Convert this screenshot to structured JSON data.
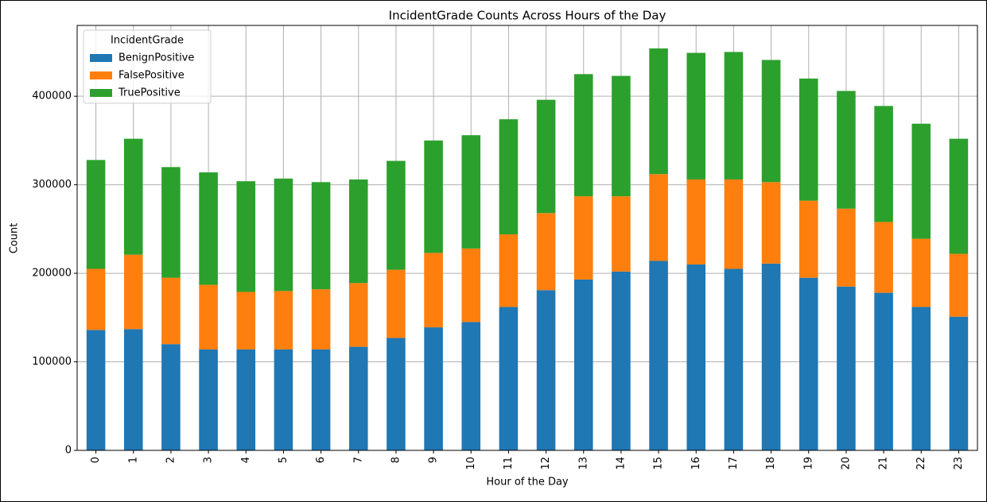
{
  "chart_data": {
    "type": "stacked_bar",
    "title": "IncidentGrade Counts Across Hours of the Day",
    "x_label": "Hour of the Day",
    "y_label": "Count",
    "categories": [
      "0",
      "1",
      "2",
      "3",
      "4",
      "5",
      "6",
      "7",
      "8",
      "9",
      "10",
      "11",
      "12",
      "13",
      "14",
      "15",
      "16",
      "17",
      "18",
      "19",
      "20",
      "21",
      "22",
      "23"
    ],
    "series": [
      {
        "name": "BenignPositive",
        "color": "#1f77b4",
        "values": [
          136000,
          137000,
          120000,
          114000,
          114000,
          114000,
          114000,
          117000,
          127000,
          139000,
          145000,
          162000,
          181000,
          193000,
          202000,
          214000,
          210000,
          205000,
          211000,
          195000,
          185000,
          178000,
          162000,
          151000
        ]
      },
      {
        "name": "FalsePositive",
        "color": "#ff7f0e",
        "values": [
          69000,
          84000,
          75000,
          73000,
          65000,
          66000,
          68000,
          72000,
          77000,
          84000,
          83000,
          82000,
          87000,
          94000,
          85000,
          98000,
          96000,
          101000,
          92000,
          87000,
          88000,
          80000,
          77000,
          71000
        ]
      },
      {
        "name": "TruePositive",
        "color": "#2ca02c",
        "values": [
          123000,
          131000,
          125000,
          127000,
          125000,
          127000,
          121000,
          117000,
          123000,
          127000,
          128000,
          130000,
          128000,
          138000,
          136000,
          142000,
          143000,
          144000,
          138000,
          138000,
          133000,
          131000,
          130000,
          130000
        ]
      }
    ],
    "legend_title": "IncidentGrade",
    "legend_position": "upper-left",
    "ylim": [
      0,
      480000
    ],
    "yticks": [
      0,
      100000,
      200000,
      300000,
      400000
    ],
    "grid": true
  }
}
